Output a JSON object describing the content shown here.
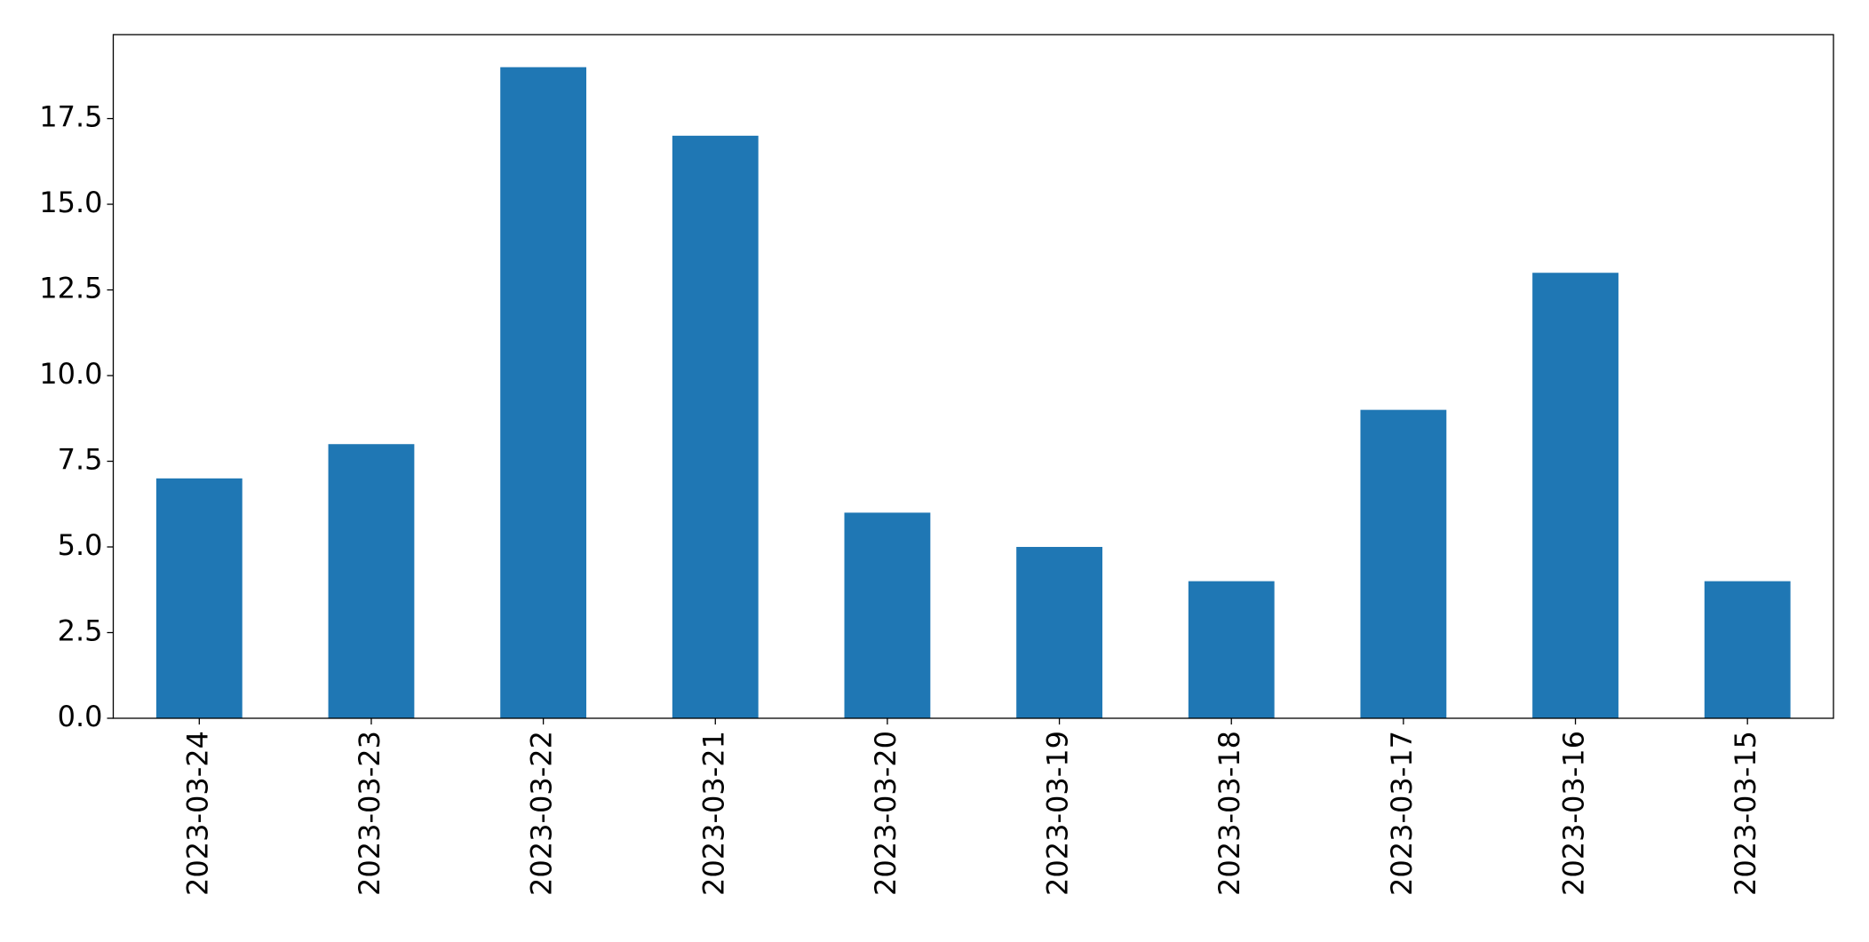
{
  "chart_data": {
    "type": "bar",
    "categories": [
      "2023-03-24",
      "2023-03-23",
      "2023-03-22",
      "2023-03-21",
      "2023-03-20",
      "2023-03-19",
      "2023-03-18",
      "2023-03-17",
      "2023-03-16",
      "2023-03-15"
    ],
    "values": [
      7,
      8,
      19,
      17,
      6,
      5,
      4,
      9,
      13,
      4
    ],
    "color": "#1f77b4",
    "ylim": [
      0,
      19.95
    ],
    "yticks": [
      {
        "value": 0,
        "label": "0.0"
      },
      {
        "value": 2.5,
        "label": "2.5"
      },
      {
        "value": 5,
        "label": "5.0"
      },
      {
        "value": 7.5,
        "label": "7.5"
      },
      {
        "value": 10,
        "label": "10.0"
      },
      {
        "value": 12.5,
        "label": "12.5"
      },
      {
        "value": 15,
        "label": "15.0"
      },
      {
        "value": 17.5,
        "label": "17.5"
      }
    ],
    "grid": false
  }
}
